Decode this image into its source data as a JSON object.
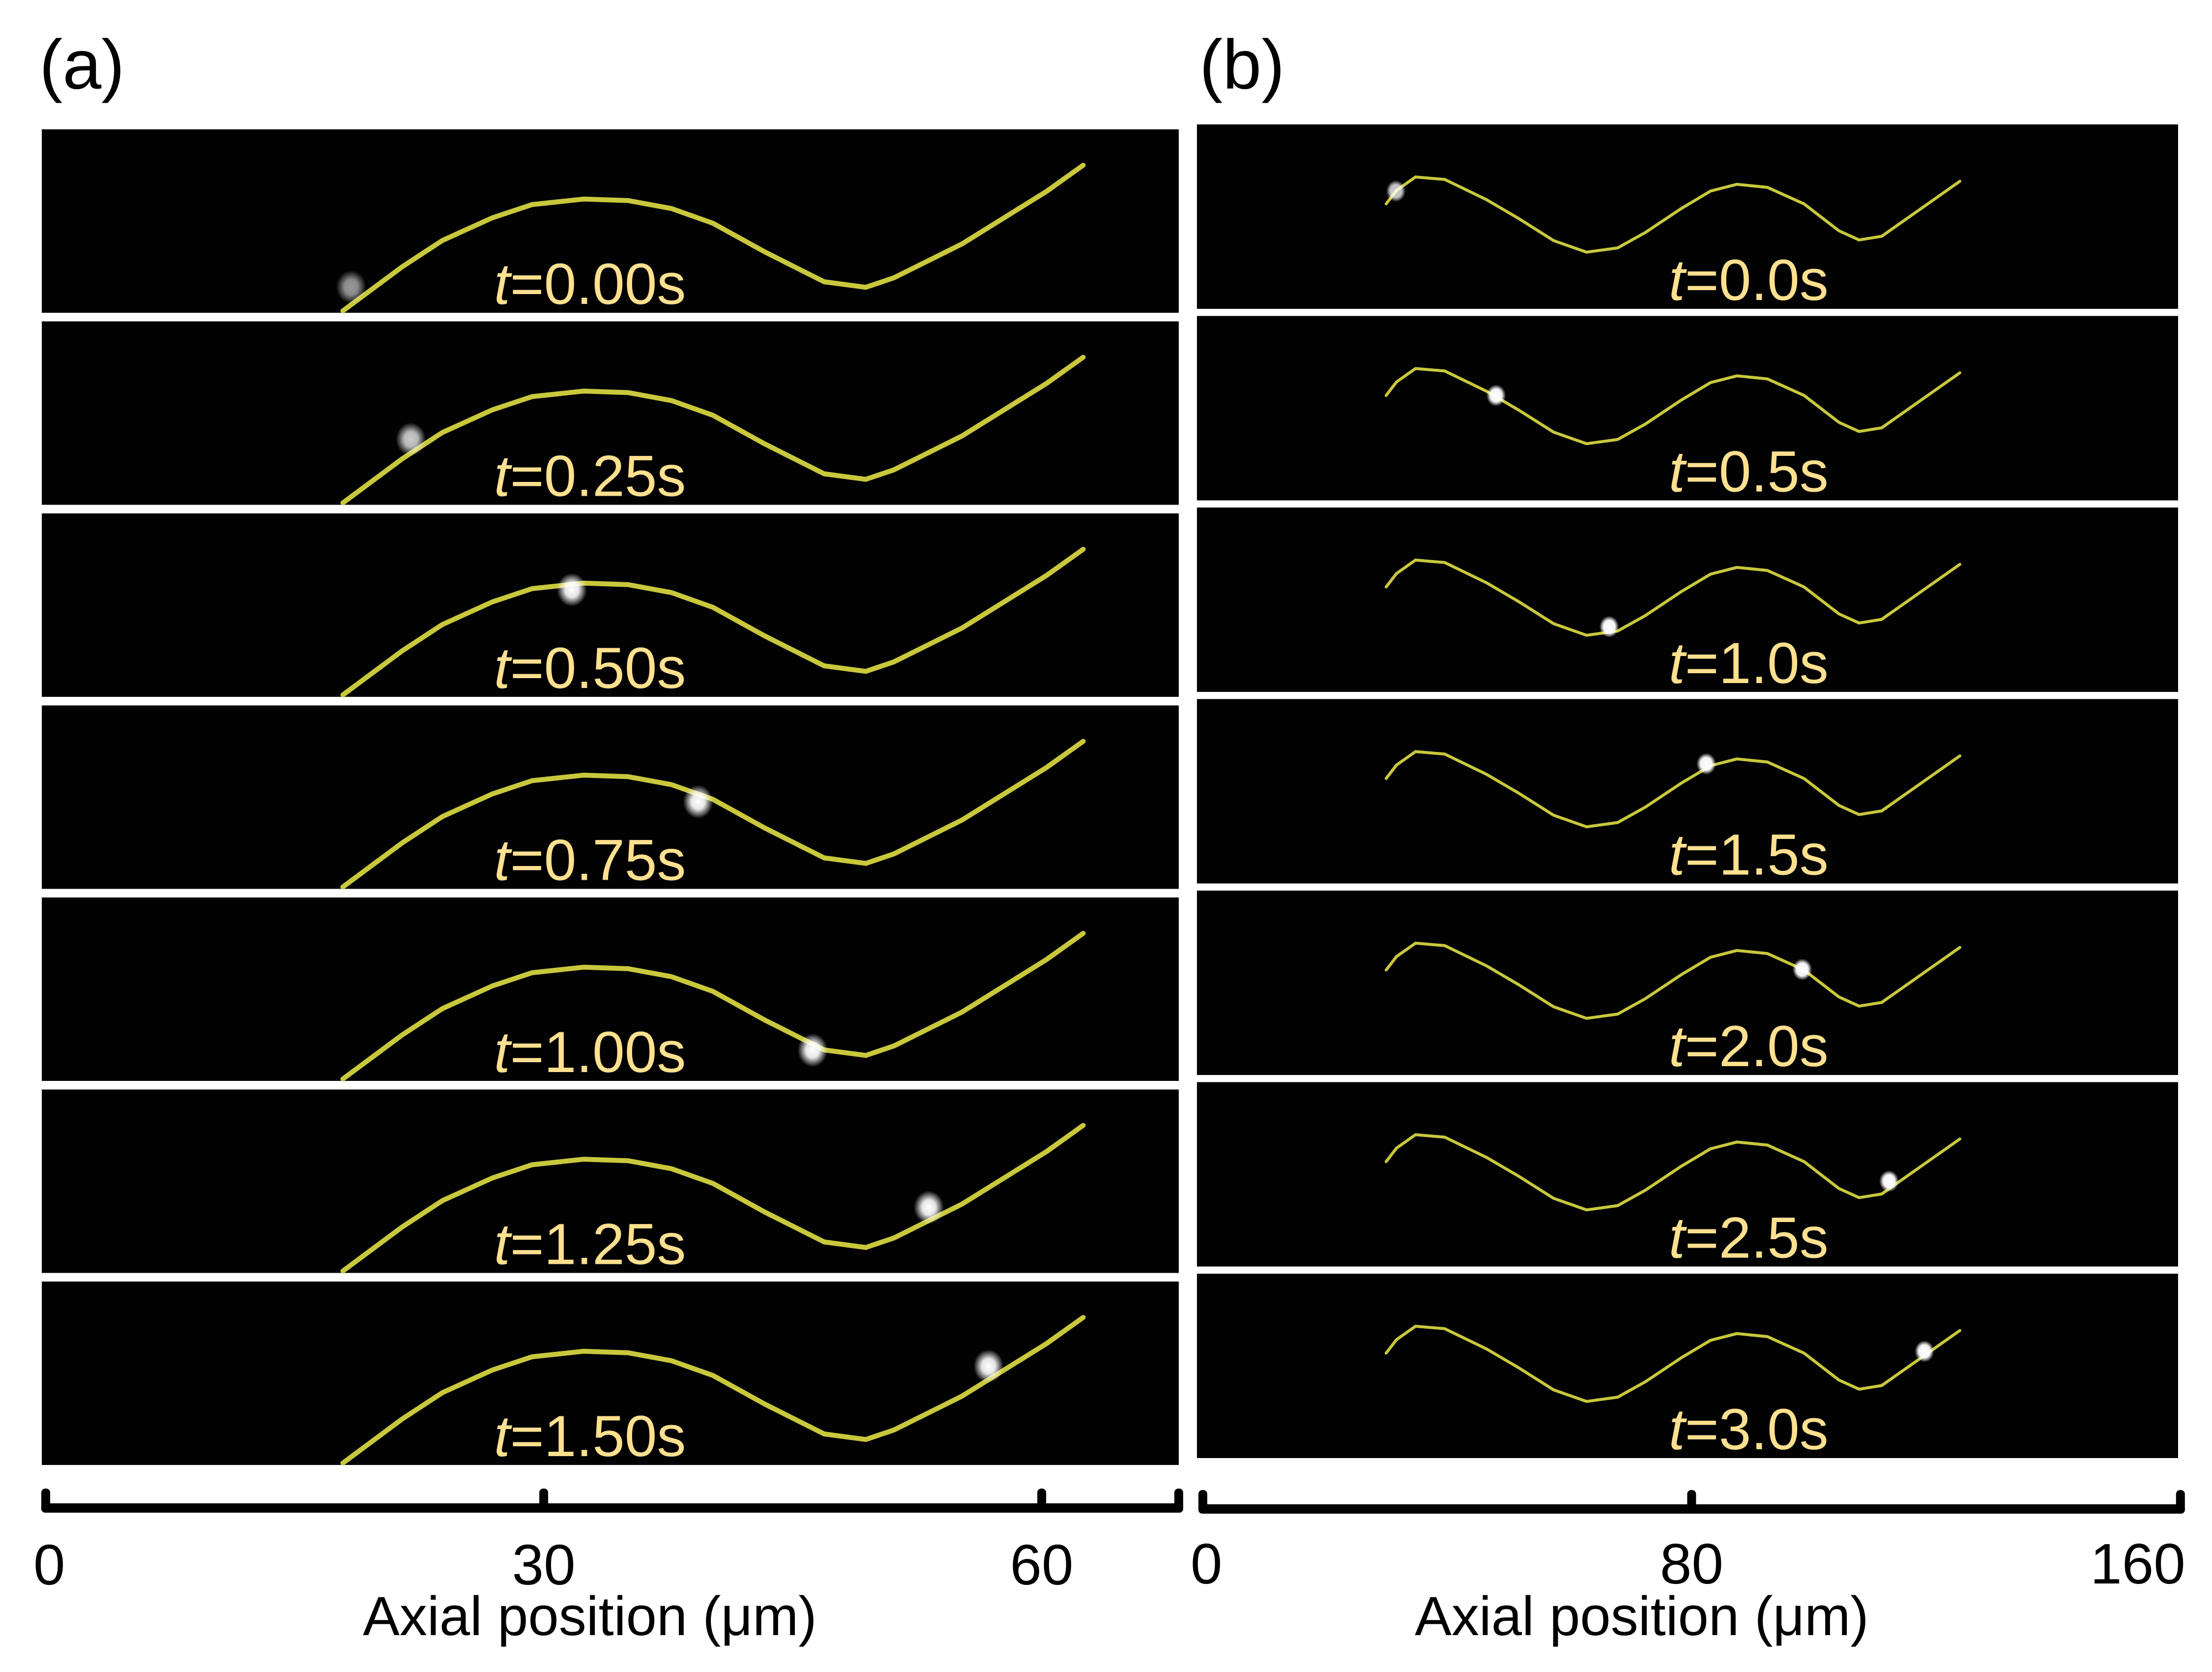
{
  "chart_data": [
    {
      "type": "scatter",
      "panel_label": "(a)",
      "title": "",
      "xlabel": "Axial position (μm)",
      "ylabel": "",
      "xlim": [
        0,
        68.2
      ],
      "x_ticks": [
        0,
        30,
        60
      ],
      "x_tick_labels": [
        "0",
        "30",
        "60"
      ],
      "lateral_units": "μm (measured from frame top)",
      "lateral_range": [
        0,
        11.0
      ],
      "fiber_path": {
        "x": [
          17.9,
          21.5,
          23.9,
          26.9,
          29.3,
          32.4,
          35.1,
          37.7,
          40.2,
          43.3,
          46.9,
          49.4,
          51.1,
          55.2,
          60.3,
          62.5
        ],
        "y": [
          10.93,
          8.26,
          6.69,
          5.33,
          4.53,
          4.2,
          4.29,
          4.77,
          5.66,
          7.37,
          9.18,
          9.51,
          8.94,
          6.9,
          3.73,
          2.16
        ]
      },
      "frames": [
        {
          "time_label": "0.00s",
          "t": 0.0,
          "particle": {
            "x": 18.4,
            "y": 9.5,
            "intensity": 0.6
          }
        },
        {
          "time_label": "0.25s",
          "t": 0.25,
          "particle": {
            "x": 22.0,
            "y": 7.1,
            "intensity": 0.8
          }
        },
        {
          "time_label": "0.50s",
          "t": 0.5,
          "particle": {
            "x": 31.7,
            "y": 4.6,
            "intensity": 1.0
          }
        },
        {
          "time_label": "0.75s",
          "t": 0.75,
          "particle": {
            "x": 39.3,
            "y": 5.8,
            "intensity": 1.0
          }
        },
        {
          "time_label": "1.00s",
          "t": 1.0,
          "particle": {
            "x": 46.2,
            "y": 9.2,
            "intensity": 1.0
          }
        },
        {
          "time_label": "1.25s",
          "t": 1.25,
          "particle": {
            "x": 53.2,
            "y": 7.1,
            "intensity": 1.0
          }
        },
        {
          "time_label": "1.50s",
          "t": 1.5,
          "particle": {
            "x": 56.8,
            "y": 5.1,
            "intensity": 1.0
          }
        }
      ]
    },
    {
      "type": "scatter",
      "panel_label": "(b)",
      "title": "",
      "xlabel": "Axial position (μm)",
      "ylabel": "",
      "xlim": [
        0,
        160
      ],
      "x_ticks": [
        0,
        80,
        160
      ],
      "x_tick_labels": [
        "0",
        "80",
        "160"
      ],
      "lateral_units": "μm (measured from frame top)",
      "lateral_range": [
        0,
        30.2
      ],
      "fiber_path": {
        "x": [
          30.0,
          31.7,
          34.8,
          39.6,
          46.4,
          51.7,
          57.4,
          62.8,
          67.9,
          72.4,
          78.4,
          83.1,
          87.4,
          92.4,
          98.4,
          104.1,
          107.4,
          111.1,
          123.9
        ],
        "y": [
          13.0,
          10.8,
          8.6,
          9.0,
          12.3,
          15.4,
          19.0,
          20.9,
          20.2,
          17.7,
          13.7,
          10.9,
          9.8,
          10.3,
          13.0,
          17.4,
          18.9,
          18.3,
          9.3
        ]
      },
      "frames": [
        {
          "time_label": "0.0s",
          "t": 0.0,
          "particle": {
            "x": 31.6,
            "y": 10.9,
            "intensity": 0.8
          }
        },
        {
          "time_label": "0.5s",
          "t": 0.5,
          "particle": {
            "x": 48.0,
            "y": 13.0,
            "intensity": 1.0
          }
        },
        {
          "time_label": "1.0s",
          "t": 1.0,
          "particle": {
            "x": 66.5,
            "y": 19.5,
            "intensity": 1.0
          }
        },
        {
          "time_label": "1.5s",
          "t": 1.5,
          "particle": {
            "x": 82.4,
            "y": 10.6,
            "intensity": 1.0
          }
        },
        {
          "time_label": "2.0s",
          "t": 2.0,
          "particle": {
            "x": 98.1,
            "y": 12.9,
            "intensity": 1.0
          }
        },
        {
          "time_label": "2.5s",
          "t": 2.5,
          "particle": {
            "x": 112.3,
            "y": 16.2,
            "intensity": 1.0
          }
        },
        {
          "time_label": "3.0s",
          "t": 3.0,
          "particle": {
            "x": 118.1,
            "y": 12.7,
            "intensity": 1.0
          }
        }
      ]
    }
  ],
  "labels": {
    "time_prefix": "t",
    "equals": "=",
    "colors": {
      "fiber": "#C9C83C",
      "time_label": "#FFE08F",
      "particle": "#FFFFFF",
      "frame_background": "#020202"
    }
  }
}
